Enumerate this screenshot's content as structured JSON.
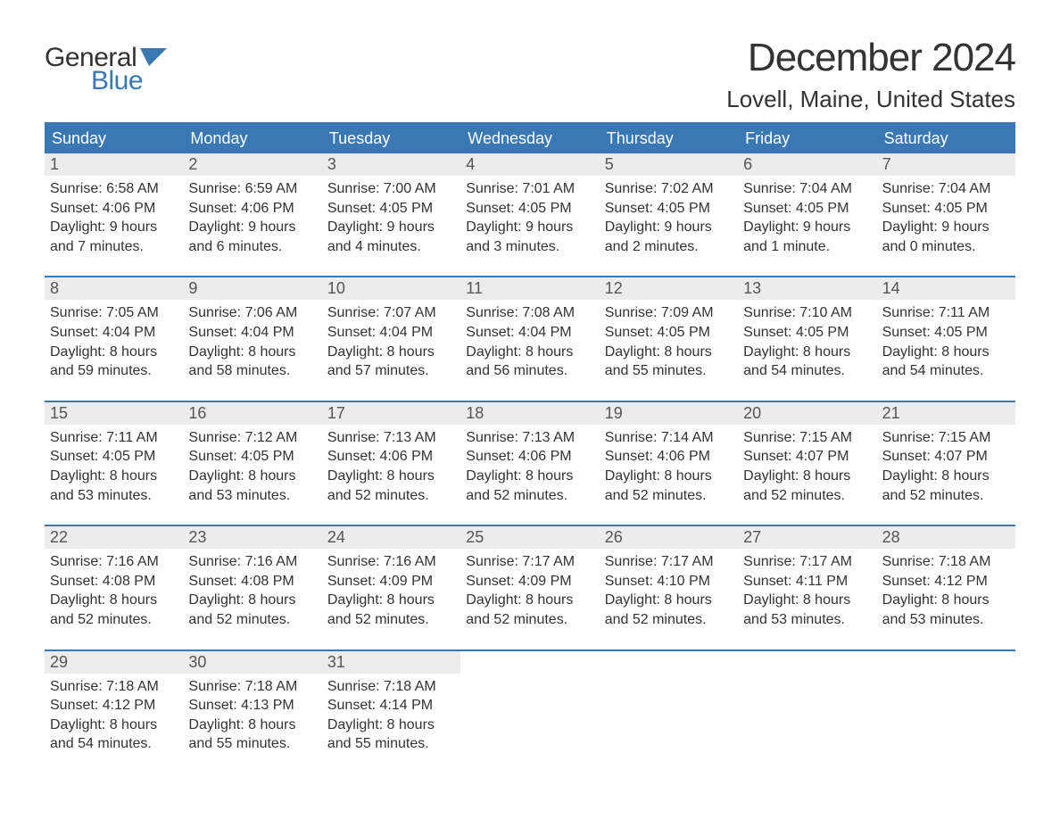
{
  "logo": {
    "word1": "General",
    "word2": "Blue",
    "accent_color": "#3a78b5"
  },
  "title": "December 2024",
  "location": "Lovell, Maine, United States",
  "header_bg": "#3a78b5",
  "header_text_color": "#ffffff",
  "daynum_bg": "#ececec",
  "body_text_color": "#333333",
  "weekdays": [
    "Sunday",
    "Monday",
    "Tuesday",
    "Wednesday",
    "Thursday",
    "Friday",
    "Saturday"
  ],
  "weeks": [
    [
      {
        "n": "1",
        "sunrise": "Sunrise: 6:58 AM",
        "sunset": "Sunset: 4:06 PM",
        "d1": "Daylight: 9 hours",
        "d2": "and 7 minutes."
      },
      {
        "n": "2",
        "sunrise": "Sunrise: 6:59 AM",
        "sunset": "Sunset: 4:06 PM",
        "d1": "Daylight: 9 hours",
        "d2": "and 6 minutes."
      },
      {
        "n": "3",
        "sunrise": "Sunrise: 7:00 AM",
        "sunset": "Sunset: 4:05 PM",
        "d1": "Daylight: 9 hours",
        "d2": "and 4 minutes."
      },
      {
        "n": "4",
        "sunrise": "Sunrise: 7:01 AM",
        "sunset": "Sunset: 4:05 PM",
        "d1": "Daylight: 9 hours",
        "d2": "and 3 minutes."
      },
      {
        "n": "5",
        "sunrise": "Sunrise: 7:02 AM",
        "sunset": "Sunset: 4:05 PM",
        "d1": "Daylight: 9 hours",
        "d2": "and 2 minutes."
      },
      {
        "n": "6",
        "sunrise": "Sunrise: 7:04 AM",
        "sunset": "Sunset: 4:05 PM",
        "d1": "Daylight: 9 hours",
        "d2": "and 1 minute."
      },
      {
        "n": "7",
        "sunrise": "Sunrise: 7:04 AM",
        "sunset": "Sunset: 4:05 PM",
        "d1": "Daylight: 9 hours",
        "d2": "and 0 minutes."
      }
    ],
    [
      {
        "n": "8",
        "sunrise": "Sunrise: 7:05 AM",
        "sunset": "Sunset: 4:04 PM",
        "d1": "Daylight: 8 hours",
        "d2": "and 59 minutes."
      },
      {
        "n": "9",
        "sunrise": "Sunrise: 7:06 AM",
        "sunset": "Sunset: 4:04 PM",
        "d1": "Daylight: 8 hours",
        "d2": "and 58 minutes."
      },
      {
        "n": "10",
        "sunrise": "Sunrise: 7:07 AM",
        "sunset": "Sunset: 4:04 PM",
        "d1": "Daylight: 8 hours",
        "d2": "and 57 minutes."
      },
      {
        "n": "11",
        "sunrise": "Sunrise: 7:08 AM",
        "sunset": "Sunset: 4:04 PM",
        "d1": "Daylight: 8 hours",
        "d2": "and 56 minutes."
      },
      {
        "n": "12",
        "sunrise": "Sunrise: 7:09 AM",
        "sunset": "Sunset: 4:05 PM",
        "d1": "Daylight: 8 hours",
        "d2": "and 55 minutes."
      },
      {
        "n": "13",
        "sunrise": "Sunrise: 7:10 AM",
        "sunset": "Sunset: 4:05 PM",
        "d1": "Daylight: 8 hours",
        "d2": "and 54 minutes."
      },
      {
        "n": "14",
        "sunrise": "Sunrise: 7:11 AM",
        "sunset": "Sunset: 4:05 PM",
        "d1": "Daylight: 8 hours",
        "d2": "and 54 minutes."
      }
    ],
    [
      {
        "n": "15",
        "sunrise": "Sunrise: 7:11 AM",
        "sunset": "Sunset: 4:05 PM",
        "d1": "Daylight: 8 hours",
        "d2": "and 53 minutes."
      },
      {
        "n": "16",
        "sunrise": "Sunrise: 7:12 AM",
        "sunset": "Sunset: 4:05 PM",
        "d1": "Daylight: 8 hours",
        "d2": "and 53 minutes."
      },
      {
        "n": "17",
        "sunrise": "Sunrise: 7:13 AM",
        "sunset": "Sunset: 4:06 PM",
        "d1": "Daylight: 8 hours",
        "d2": "and 52 minutes."
      },
      {
        "n": "18",
        "sunrise": "Sunrise: 7:13 AM",
        "sunset": "Sunset: 4:06 PM",
        "d1": "Daylight: 8 hours",
        "d2": "and 52 minutes."
      },
      {
        "n": "19",
        "sunrise": "Sunrise: 7:14 AM",
        "sunset": "Sunset: 4:06 PM",
        "d1": "Daylight: 8 hours",
        "d2": "and 52 minutes."
      },
      {
        "n": "20",
        "sunrise": "Sunrise: 7:15 AM",
        "sunset": "Sunset: 4:07 PM",
        "d1": "Daylight: 8 hours",
        "d2": "and 52 minutes."
      },
      {
        "n": "21",
        "sunrise": "Sunrise: 7:15 AM",
        "sunset": "Sunset: 4:07 PM",
        "d1": "Daylight: 8 hours",
        "d2": "and 52 minutes."
      }
    ],
    [
      {
        "n": "22",
        "sunrise": "Sunrise: 7:16 AM",
        "sunset": "Sunset: 4:08 PM",
        "d1": "Daylight: 8 hours",
        "d2": "and 52 minutes."
      },
      {
        "n": "23",
        "sunrise": "Sunrise: 7:16 AM",
        "sunset": "Sunset: 4:08 PM",
        "d1": "Daylight: 8 hours",
        "d2": "and 52 minutes."
      },
      {
        "n": "24",
        "sunrise": "Sunrise: 7:16 AM",
        "sunset": "Sunset: 4:09 PM",
        "d1": "Daylight: 8 hours",
        "d2": "and 52 minutes."
      },
      {
        "n": "25",
        "sunrise": "Sunrise: 7:17 AM",
        "sunset": "Sunset: 4:09 PM",
        "d1": "Daylight: 8 hours",
        "d2": "and 52 minutes."
      },
      {
        "n": "26",
        "sunrise": "Sunrise: 7:17 AM",
        "sunset": "Sunset: 4:10 PM",
        "d1": "Daylight: 8 hours",
        "d2": "and 52 minutes."
      },
      {
        "n": "27",
        "sunrise": "Sunrise: 7:17 AM",
        "sunset": "Sunset: 4:11 PM",
        "d1": "Daylight: 8 hours",
        "d2": "and 53 minutes."
      },
      {
        "n": "28",
        "sunrise": "Sunrise: 7:18 AM",
        "sunset": "Sunset: 4:12 PM",
        "d1": "Daylight: 8 hours",
        "d2": "and 53 minutes."
      }
    ],
    [
      {
        "n": "29",
        "sunrise": "Sunrise: 7:18 AM",
        "sunset": "Sunset: 4:12 PM",
        "d1": "Daylight: 8 hours",
        "d2": "and 54 minutes."
      },
      {
        "n": "30",
        "sunrise": "Sunrise: 7:18 AM",
        "sunset": "Sunset: 4:13 PM",
        "d1": "Daylight: 8 hours",
        "d2": "and 55 minutes."
      },
      {
        "n": "31",
        "sunrise": "Sunrise: 7:18 AM",
        "sunset": "Sunset: 4:14 PM",
        "d1": "Daylight: 8 hours",
        "d2": "and 55 minutes."
      },
      null,
      null,
      null,
      null
    ]
  ]
}
